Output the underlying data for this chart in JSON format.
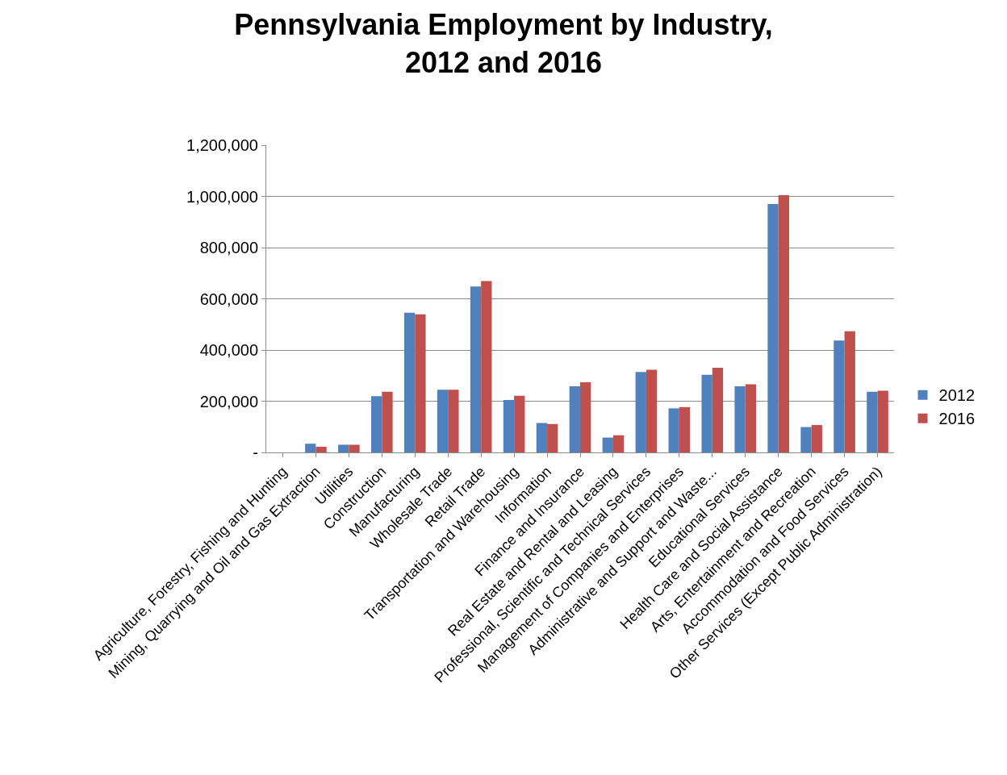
{
  "chart_data": {
    "type": "bar",
    "title": "Pennsylvania Employment by Industry,\n2012 and 2016",
    "categories": [
      "Agriculture, Forestry, Fishing and Hunting",
      "Mining, Quarrying and Oil and Gas Extraction",
      "Utilities",
      "Construction",
      "Manufacturing",
      "Wholesale Trade",
      "Retail Trade",
      "Transportation and Warehousing",
      "Information",
      "Finance and Insurance",
      "Real Estate and Rental and Leasing",
      "Professional, Scientific and Technical Services",
      "Management of Companies and Enterprises",
      "Administrative and Support and Waste...",
      "Educational Services",
      "Health Care and Social Assistance",
      "Arts, Entertainment and Recreation",
      "Accommodation and Food Services",
      "Other Services (Except Public Administration)"
    ],
    "series": [
      {
        "name": "2012",
        "color": "#4f81bd",
        "values": [
          0,
          34000,
          30000,
          220000,
          546000,
          245000,
          648000,
          205000,
          115000,
          258000,
          58000,
          314000,
          172000,
          303000,
          258000,
          970000,
          99000,
          437000,
          237000
        ]
      },
      {
        "name": "2016",
        "color": "#c0504d",
        "values": [
          0,
          22000,
          30000,
          237000,
          539000,
          245000,
          669000,
          221000,
          111000,
          274000,
          67000,
          323000,
          177000,
          331000,
          266000,
          1005000,
          107000,
          473000,
          241000
        ]
      }
    ],
    "ylim": [
      0,
      1200000
    ],
    "yticks": [
      {
        "value": 0,
        "label": "-"
      },
      {
        "value": 200000,
        "label": "200,000"
      },
      {
        "value": 400000,
        "label": "400,000"
      },
      {
        "value": 600000,
        "label": "600,000"
      },
      {
        "value": 800000,
        "label": "800,000"
      },
      {
        "value": 1000000,
        "label": "1,000,000"
      },
      {
        "value": 1200000,
        "label": "1,200,000"
      }
    ],
    "grid": "y",
    "legend": "right"
  }
}
